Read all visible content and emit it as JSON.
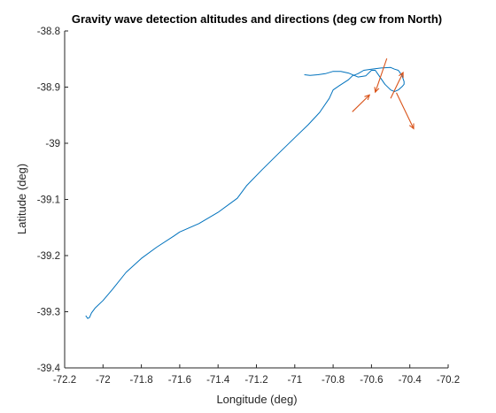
{
  "chart_data": {
    "type": "line",
    "title": "Gravity wave detection altitudes and directions (deg cw from North)",
    "xlabel": "Longitude (deg)",
    "ylabel": "Latitude (deg)",
    "xlim": [
      -72.2,
      -70.2
    ],
    "ylim": [
      -39.4,
      -38.8
    ],
    "xticks": [
      "-72.2",
      "-72",
      "-71.8",
      "-71.6",
      "-71.4",
      "-71.2",
      "-71",
      "-70.8",
      "-70.6",
      "-70.4",
      "-70.2"
    ],
    "yticks": [
      "-38.8",
      "-38.9",
      "-39",
      "-39.1",
      "-39.2",
      "-39.3",
      "-39.4"
    ],
    "grid": false,
    "series": [
      {
        "color": "#0072BD",
        "x": [
          -72.09,
          -72.08,
          -72.07,
          -72.06,
          -72.04,
          -72.0,
          -71.95,
          -71.88,
          -71.8,
          -71.72,
          -71.63,
          -71.6,
          -71.5,
          -71.4,
          -71.3,
          -71.25,
          -71.17,
          -71.09,
          -71.0,
          -70.93,
          -70.87,
          -70.82,
          -70.8,
          -70.77,
          -70.72,
          -70.7,
          -70.67,
          -70.64,
          -70.6,
          -70.55,
          -70.5,
          -70.48,
          -70.46,
          -70.45,
          -70.44,
          -70.43,
          -70.43,
          -70.44,
          -70.46,
          -70.48,
          -70.5,
          -70.53,
          -70.56,
          -70.58,
          -70.6,
          -70.63,
          -70.67,
          -70.72,
          -70.76,
          -70.8,
          -70.84,
          -70.88,
          -70.92,
          -70.95
        ],
        "y": [
          -39.307,
          -39.312,
          -39.31,
          -39.302,
          -39.293,
          -39.28,
          -39.26,
          -39.23,
          -39.205,
          -39.185,
          -39.165,
          -39.158,
          -39.143,
          -39.123,
          -39.098,
          -39.075,
          -39.047,
          -39.02,
          -38.99,
          -38.967,
          -38.945,
          -38.92,
          -38.905,
          -38.898,
          -38.887,
          -38.88,
          -38.876,
          -38.87,
          -38.868,
          -38.866,
          -38.865,
          -38.868,
          -38.87,
          -38.875,
          -38.88,
          -38.89,
          -38.895,
          -38.899,
          -38.905,
          -38.908,
          -38.905,
          -38.895,
          -38.88,
          -38.87,
          -38.87,
          -38.88,
          -38.882,
          -38.875,
          -38.872,
          -38.872,
          -38.876,
          -38.878,
          -38.879,
          -38.878
        ]
      }
    ],
    "arrows": {
      "color": "#D95319",
      "items": [
        {
          "x": -70.52,
          "y": -38.849,
          "u": -0.06,
          "v": -0.06
        },
        {
          "x": -70.7,
          "y": -38.944,
          "u": 0.09,
          "v": 0.03
        },
        {
          "x": -70.5,
          "y": -38.92,
          "u": 0.065,
          "v": 0.046
        },
        {
          "x": -70.47,
          "y": -38.91,
          "u": 0.09,
          "v": -0.064
        }
      ]
    }
  }
}
